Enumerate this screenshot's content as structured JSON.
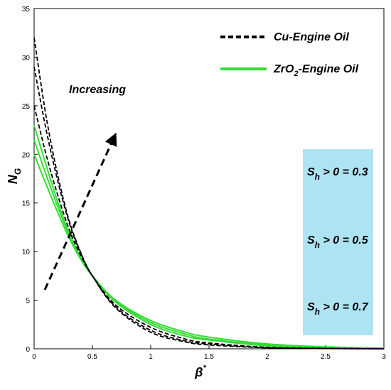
{
  "chart_data": {
    "type": "line",
    "xlabel": "β",
    "xlabel_sup": "*",
    "ylabel": "N",
    "ylabel_sub": "G",
    "xlim": [
      0,
      3
    ],
    "ylim": [
      0,
      35
    ],
    "xticks": [
      "0",
      "0.5",
      "1",
      "1.5",
      "2",
      "2.5",
      "3"
    ],
    "yticks": [
      "0",
      "5",
      "10",
      "15",
      "20",
      "25",
      "30",
      "35"
    ],
    "legend": [
      {
        "label_main": "Cu-Engine Oil",
        "label_pre": "",
        "label_sub": "",
        "label_post": "",
        "style": "dashed",
        "color": "#000000"
      },
      {
        "label_main": "",
        "label_pre": "ZrO",
        "label_sub": "2",
        "label_post": "-Engine Oil",
        "style": "solid",
        "color": "#33dd33"
      }
    ],
    "annotation": "Increasing",
    "info_box": {
      "color": "#aee3f2",
      "lines": [
        {
          "pre": "S",
          "sub": "h",
          "post": " > 0 = 0.3"
        },
        {
          "pre": "S",
          "sub": "h",
          "post": " > 0 = 0.5"
        },
        {
          "pre": "S",
          "sub": "h",
          "post": " > 0 = 0.7"
        }
      ]
    },
    "series": [
      {
        "group": "Cu-Engine Oil",
        "style": "dashed",
        "color": "#000000",
        "x": [
          0,
          0.1,
          0.2,
          0.3,
          0.4,
          0.5,
          0.7,
          1.0,
          1.3,
          1.5,
          2.0,
          2.5,
          3.0
        ],
        "y": [
          32.0,
          24.1,
          18.0,
          13.2,
          9.9,
          7.5,
          4.2,
          1.7,
          0.7,
          0.4,
          0.1,
          0.03,
          0.0
        ]
      },
      {
        "group": "Cu-Engine Oil",
        "style": "dashed",
        "color": "#000000",
        "x": [
          0,
          0.1,
          0.2,
          0.3,
          0.4,
          0.5,
          0.7,
          1.0,
          1.3,
          1.5,
          2.0,
          2.5,
          3.0
        ],
        "y": [
          29.0,
          22.7,
          17.4,
          13.0,
          9.8,
          7.5,
          4.3,
          1.9,
          0.8,
          0.5,
          0.12,
          0.03,
          0.0
        ]
      },
      {
        "group": "Cu-Engine Oil",
        "style": "dashed",
        "color": "#000000",
        "x": [
          0,
          0.1,
          0.2,
          0.3,
          0.4,
          0.5,
          0.7,
          1.0,
          1.3,
          1.5,
          2.0,
          2.5,
          3.0
        ],
        "y": [
          25.0,
          20.1,
          15.9,
          12.3,
          9.6,
          7.5,
          4.5,
          2.2,
          1.0,
          0.6,
          0.15,
          0.04,
          0.0
        ]
      },
      {
        "group": "ZrO2-Engine Oil",
        "style": "solid",
        "color": "#33dd33",
        "x": [
          0,
          0.1,
          0.2,
          0.3,
          0.4,
          0.5,
          0.7,
          1.0,
          1.3,
          1.5,
          2.0,
          2.5,
          3.0
        ],
        "y": [
          23.0,
          19.0,
          15.2,
          11.9,
          9.4,
          7.5,
          4.8,
          2.5,
          1.3,
          0.9,
          0.3,
          0.12,
          0.05
        ]
      },
      {
        "group": "ZrO2-Engine Oil",
        "style": "solid",
        "color": "#33dd33",
        "x": [
          0,
          0.1,
          0.2,
          0.3,
          0.4,
          0.5,
          0.7,
          1.0,
          1.3,
          1.5,
          2.0,
          2.5,
          3.0
        ],
        "y": [
          21.5,
          18.0,
          14.7,
          11.7,
          9.3,
          7.5,
          4.9,
          2.7,
          1.5,
          1.0,
          0.4,
          0.15,
          0.06
        ]
      },
      {
        "group": "ZrO2-Engine Oil",
        "style": "solid",
        "color": "#33dd33",
        "x": [
          0,
          0.1,
          0.2,
          0.3,
          0.4,
          0.5,
          0.7,
          1.0,
          1.3,
          1.5,
          2.0,
          2.5,
          3.0
        ],
        "y": [
          20.0,
          17.0,
          14.1,
          11.4,
          9.2,
          7.5,
          5.0,
          2.9,
          1.7,
          1.2,
          0.5,
          0.2,
          0.08
        ]
      }
    ]
  }
}
